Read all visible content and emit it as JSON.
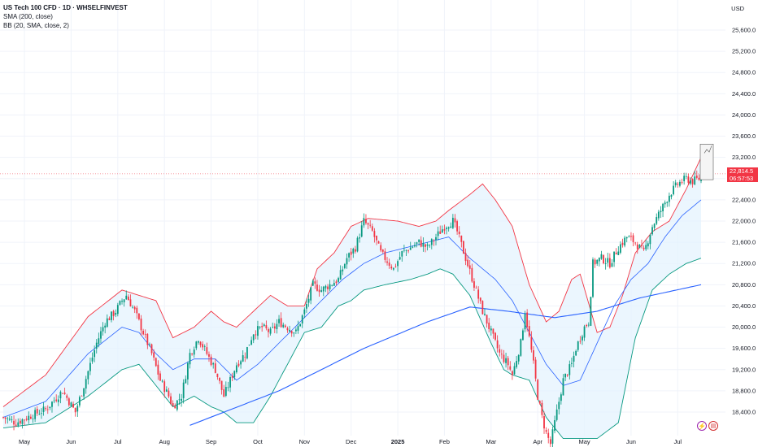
{
  "legend": {
    "title": "US Tech 100 CFD · 1D · WHSELFINVEST",
    "sma": "SMA (200, close)",
    "bb": "BB (20, SMA, close, 2)"
  },
  "y_axis_unit": "USD",
  "last_price": "22,814.5",
  "countdown": "06:57:53",
  "icons": {
    "bolt": "lightning-icon",
    "flag": "us-flag-icon"
  },
  "colors": {
    "up": "#089981",
    "down": "#f23645",
    "bb_upper": "#f23645",
    "bb_lower": "#089981",
    "bb_basis": "#2962ff",
    "sma": "#2962ff",
    "band_fill": "#e3f2fd"
  },
  "chart_data": {
    "type": "candlestick",
    "y_ticks": [
      18400,
      18800,
      19200,
      19600,
      20000,
      20400,
      20800,
      21200,
      21600,
      22000,
      22400,
      22800,
      23200,
      23600,
      24000,
      24400,
      24800,
      25200,
      25600
    ],
    "y_tick_labels": [
      "18,400.0",
      "18,800.0",
      "19,200.0",
      "19,600.0",
      "20,000.0",
      "20,400.0",
      "20,800.0",
      "21,200.0",
      "21,600.0",
      "22,000.0",
      "22,400.0",
      "22,800.0",
      "23,200.0",
      "23,600.0",
      "24,000.0",
      "24,400.0",
      "24,800.0",
      "25,200.0",
      "25,600.0"
    ],
    "ylim": [
      18200,
      25800
    ],
    "x_tick_labels": [
      "May",
      "Jun",
      "Jul",
      "Aug",
      "Sep",
      "Oct",
      "Nov",
      "Dec",
      "2025",
      "Feb",
      "Mar",
      "Apr",
      "May",
      "Jun",
      "Jul"
    ],
    "x_tick_index": [
      10,
      32,
      54,
      76,
      98,
      120,
      142,
      164,
      186,
      208,
      230,
      252,
      274,
      296,
      318
    ],
    "n_bars": 330,
    "close_path_anchors": [
      [
        0,
        18300
      ],
      [
        6,
        18200
      ],
      [
        14,
        18350
      ],
      [
        20,
        18450
      ],
      [
        28,
        18800
      ],
      [
        34,
        18400
      ],
      [
        38,
        18900
      ],
      [
        44,
        19700
      ],
      [
        48,
        20100
      ],
      [
        53,
        20300
      ],
      [
        56,
        20500
      ],
      [
        58,
        20600
      ],
      [
        62,
        20300
      ],
      [
        66,
        19900
      ],
      [
        70,
        19500
      ],
      [
        74,
        19000
      ],
      [
        78,
        18700
      ],
      [
        80,
        18500
      ],
      [
        84,
        18700
      ],
      [
        88,
        19500
      ],
      [
        92,
        19800
      ],
      [
        96,
        19500
      ],
      [
        100,
        19200
      ],
      [
        104,
        18700
      ],
      [
        106,
        18900
      ],
      [
        110,
        19300
      ],
      [
        114,
        19500
      ],
      [
        118,
        19900
      ],
      [
        122,
        20000
      ],
      [
        126,
        19900
      ],
      [
        130,
        20100
      ],
      [
        134,
        20000
      ],
      [
        138,
        19900
      ],
      [
        142,
        20300
      ],
      [
        146,
        20800
      ],
      [
        150,
        20700
      ],
      [
        154,
        20800
      ],
      [
        158,
        20900
      ],
      [
        162,
        21300
      ],
      [
        166,
        21500
      ],
      [
        170,
        22000
      ],
      [
        174,
        21800
      ],
      [
        178,
        21400
      ],
      [
        182,
        21200
      ],
      [
        184,
        21100
      ],
      [
        188,
        21400
      ],
      [
        192,
        21500
      ],
      [
        196,
        21600
      ],
      [
        200,
        21500
      ],
      [
        204,
        21700
      ],
      [
        208,
        21900
      ],
      [
        212,
        22000
      ],
      [
        214,
        21800
      ],
      [
        218,
        21300
      ],
      [
        222,
        20800
      ],
      [
        226,
        20300
      ],
      [
        230,
        19900
      ],
      [
        234,
        19500
      ],
      [
        238,
        19300
      ],
      [
        240,
        19100
      ],
      [
        244,
        19700
      ],
      [
        246,
        20300
      ],
      [
        248,
        19800
      ],
      [
        250,
        19300
      ],
      [
        252,
        18700
      ],
      [
        254,
        18300
      ],
      [
        256,
        18000
      ],
      [
        258,
        17800
      ],
      [
        260,
        18200
      ],
      [
        264,
        19000
      ],
      [
        268,
        19300
      ],
      [
        270,
        19600
      ],
      [
        272,
        19800
      ],
      [
        274,
        20000
      ],
      [
        276,
        20100
      ],
      [
        278,
        21200
      ],
      [
        282,
        21300
      ],
      [
        286,
        21200
      ],
      [
        290,
        21500
      ],
      [
        294,
        21700
      ],
      [
        298,
        21600
      ],
      [
        300,
        21500
      ],
      [
        302,
        21400
      ],
      [
        306,
        21900
      ],
      [
        310,
        22200
      ],
      [
        314,
        22500
      ],
      [
        318,
        22700
      ],
      [
        322,
        22800
      ],
      [
        325,
        22750
      ],
      [
        329,
        22814
      ]
    ],
    "sma200_anchors": [
      [
        88,
        18150
      ],
      [
        130,
        18800
      ],
      [
        170,
        19600
      ],
      [
        200,
        20100
      ],
      [
        220,
        20380
      ],
      [
        238,
        20300
      ],
      [
        260,
        20180
      ],
      [
        280,
        20300
      ],
      [
        300,
        20550
      ],
      [
        329,
        20800
      ]
    ],
    "bb_upper_anchors": [
      [
        0,
        18500
      ],
      [
        20,
        19100
      ],
      [
        40,
        20200
      ],
      [
        56,
        20700
      ],
      [
        64,
        20600
      ],
      [
        72,
        20500
      ],
      [
        80,
        19800
      ],
      [
        90,
        20000
      ],
      [
        98,
        20300
      ],
      [
        104,
        20100
      ],
      [
        110,
        20000
      ],
      [
        118,
        20300
      ],
      [
        126,
        20600
      ],
      [
        134,
        20400
      ],
      [
        142,
        20400
      ],
      [
        148,
        21100
      ],
      [
        156,
        21400
      ],
      [
        164,
        21900
      ],
      [
        172,
        22050
      ],
      [
        186,
        22000
      ],
      [
        196,
        21900
      ],
      [
        204,
        22000
      ],
      [
        210,
        22200
      ],
      [
        220,
        22500
      ],
      [
        226,
        22700
      ],
      [
        232,
        22400
      ],
      [
        240,
        21900
      ],
      [
        248,
        20800
      ],
      [
        256,
        20100
      ],
      [
        262,
        20300
      ],
      [
        268,
        20900
      ],
      [
        272,
        21000
      ],
      [
        280,
        19900
      ],
      [
        286,
        20000
      ],
      [
        292,
        20600
      ],
      [
        298,
        21400
      ],
      [
        306,
        21800
      ],
      [
        314,
        22000
      ],
      [
        322,
        22600
      ],
      [
        329,
        23200
      ]
    ],
    "bb_basis_anchors": [
      [
        0,
        18300
      ],
      [
        20,
        18600
      ],
      [
        40,
        19500
      ],
      [
        56,
        20000
      ],
      [
        64,
        19900
      ],
      [
        72,
        19500
      ],
      [
        80,
        19200
      ],
      [
        90,
        19400
      ],
      [
        100,
        19400
      ],
      [
        110,
        19000
      ],
      [
        120,
        19300
      ],
      [
        130,
        19700
      ],
      [
        140,
        20100
      ],
      [
        150,
        20500
      ],
      [
        160,
        20900
      ],
      [
        170,
        21200
      ],
      [
        180,
        21400
      ],
      [
        190,
        21500
      ],
      [
        200,
        21600
      ],
      [
        210,
        21700
      ],
      [
        220,
        21300
      ],
      [
        232,
        20900
      ],
      [
        240,
        20500
      ],
      [
        248,
        19900
      ],
      [
        256,
        19300
      ],
      [
        264,
        18900
      ],
      [
        272,
        19000
      ],
      [
        280,
        19700
      ],
      [
        288,
        20400
      ],
      [
        296,
        20900
      ],
      [
        304,
        21200
      ],
      [
        312,
        21700
      ],
      [
        320,
        22100
      ],
      [
        329,
        22400
      ]
    ],
    "bb_lower_anchors": [
      [
        0,
        18100
      ],
      [
        20,
        18200
      ],
      [
        40,
        18700
      ],
      [
        56,
        19200
      ],
      [
        64,
        19300
      ],
      [
        72,
        18900
      ],
      [
        80,
        18500
      ],
      [
        90,
        18700
      ],
      [
        98,
        18500
      ],
      [
        104,
        18400
      ],
      [
        110,
        18200
      ],
      [
        118,
        18200
      ],
      [
        126,
        18700
      ],
      [
        134,
        19300
      ],
      [
        142,
        19900
      ],
      [
        150,
        20000
      ],
      [
        158,
        20400
      ],
      [
        164,
        20500
      ],
      [
        170,
        20700
      ],
      [
        180,
        20800
      ],
      [
        192,
        20900
      ],
      [
        200,
        21000
      ],
      [
        206,
        21100
      ],
      [
        212,
        21000
      ],
      [
        220,
        20600
      ],
      [
        230,
        19700
      ],
      [
        236,
        19200
      ],
      [
        240,
        19100
      ],
      [
        248,
        19000
      ],
      [
        256,
        18300
      ],
      [
        264,
        17900
      ],
      [
        280,
        17900
      ],
      [
        290,
        18200
      ],
      [
        298,
        19800
      ],
      [
        306,
        20700
      ],
      [
        314,
        21000
      ],
      [
        322,
        21200
      ],
      [
        329,
        21300
      ]
    ]
  }
}
